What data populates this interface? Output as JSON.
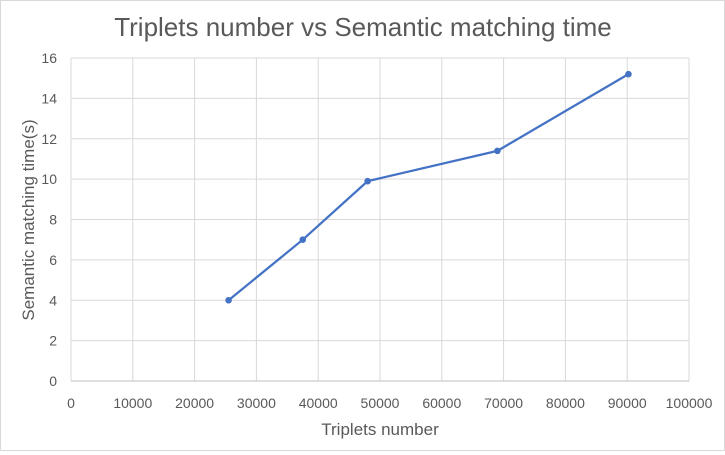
{
  "chart_data": {
    "type": "line",
    "title": "Triplets number vs Semantic matching time",
    "xlabel": "Triplets number",
    "ylabel": "Semantic matching time(s)",
    "xlim": [
      0,
      100000
    ],
    "ylim": [
      0,
      16
    ],
    "x_ticks": [
      0,
      10000,
      20000,
      30000,
      40000,
      50000,
      60000,
      70000,
      80000,
      90000,
      100000
    ],
    "y_ticks": [
      0,
      2,
      4,
      6,
      8,
      10,
      12,
      14,
      16
    ],
    "grid": true,
    "series": [
      {
        "color": "#4472c4",
        "x": [
          25500,
          37500,
          48000,
          69000,
          90200
        ],
        "y": [
          4.0,
          7.0,
          9.9,
          11.4,
          15.2
        ]
      }
    ]
  }
}
